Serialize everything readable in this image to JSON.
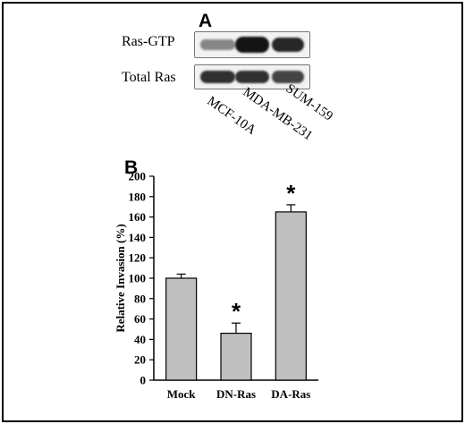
{
  "panelA": {
    "label": "A",
    "rows": [
      {
        "name": "Ras-GTP",
        "band_intensity": [
          0.35,
          0.95,
          0.85
        ]
      },
      {
        "name": "Total Ras",
        "band_intensity": [
          0.8,
          0.8,
          0.7
        ]
      }
    ],
    "lanes": [
      "MCF-10A",
      "MDA-MB-231",
      "SUM-159"
    ]
  },
  "panelB": {
    "label": "B"
  },
  "chart_data": {
    "type": "bar",
    "categories": [
      "Mock",
      "DN-Ras",
      "DA-Ras"
    ],
    "values": [
      100,
      46,
      165
    ],
    "errors": [
      4,
      10,
      7
    ],
    "significance": [
      "",
      "*",
      "*"
    ],
    "ylabel": "Relative Invasion (%)",
    "xlabel": "",
    "ylim": [
      0,
      200
    ],
    "yticks": [
      0,
      20,
      40,
      60,
      80,
      100,
      120,
      140,
      160,
      180,
      200
    ],
    "bar_color": "#bfbfbf",
    "grid": false
  }
}
